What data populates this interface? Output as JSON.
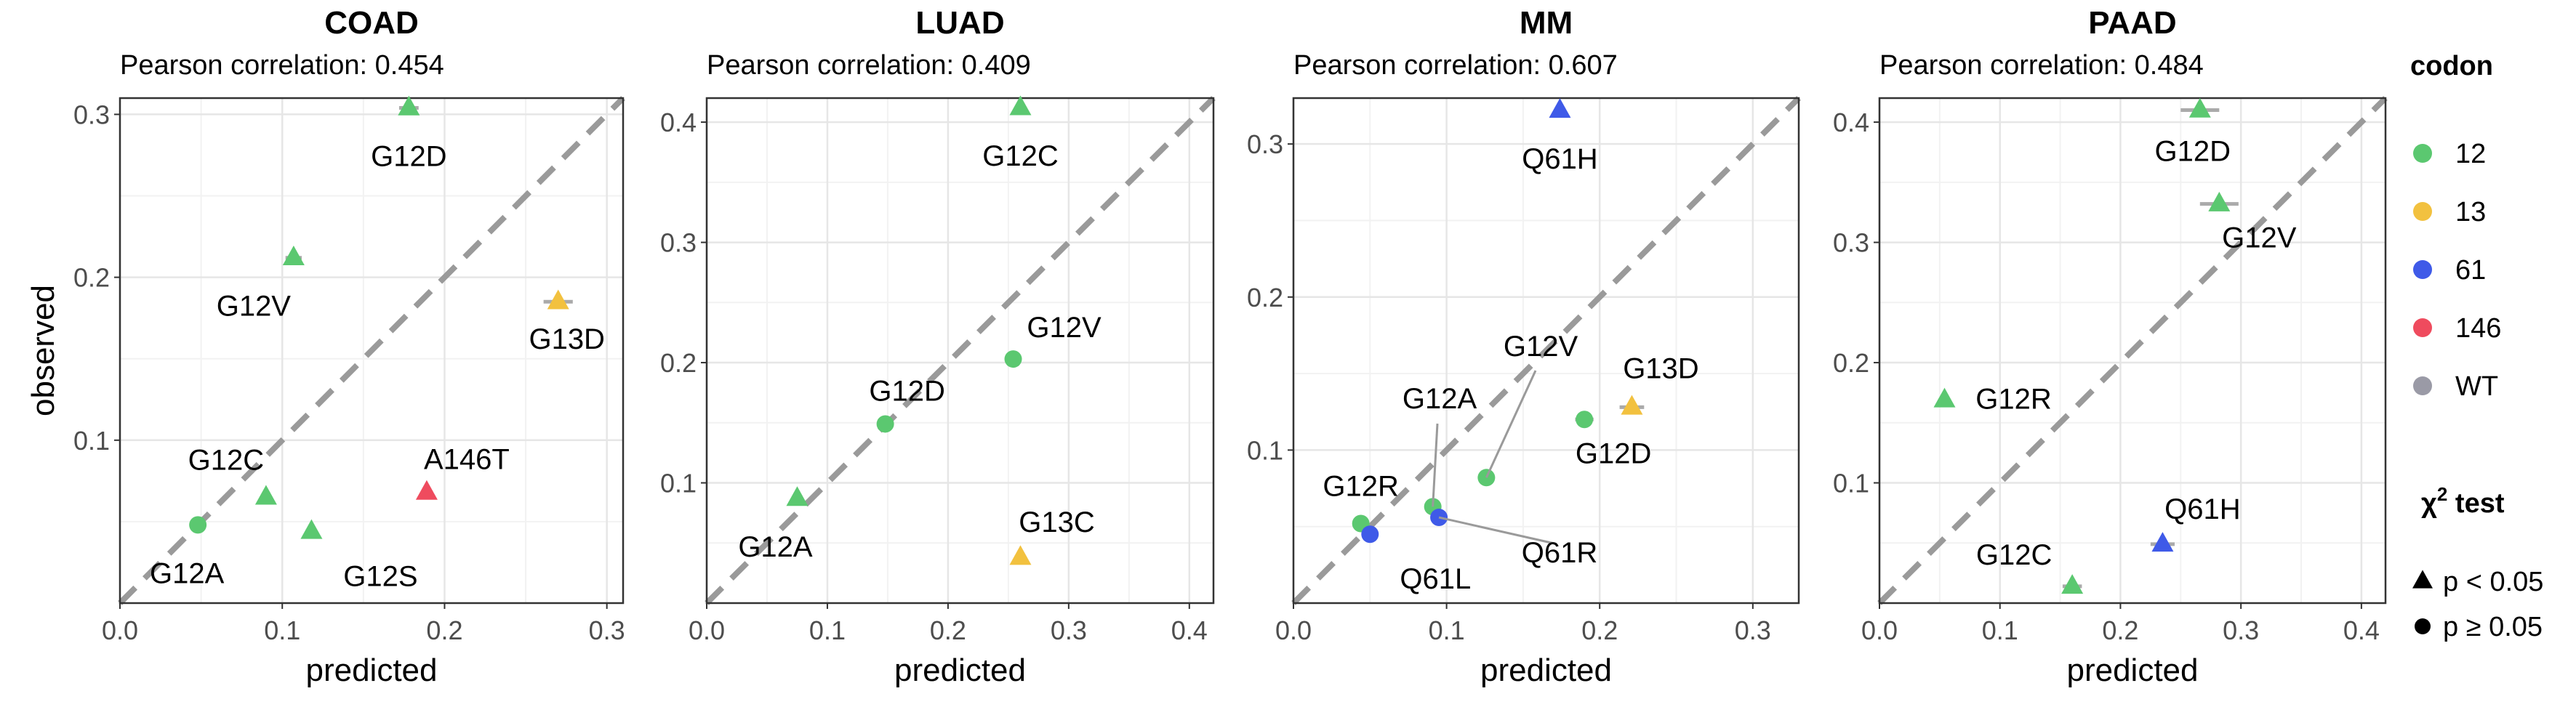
{
  "chart_data": [
    {
      "type": "scatter",
      "title": "COAD",
      "subtitle": "Pearson correlation: 0.454",
      "xlabel": "predicted",
      "ylabel": "observed",
      "xlim": [
        0,
        0.31
      ],
      "ylim": [
        0,
        0.31
      ],
      "xticks": [
        "0.0",
        "0.1",
        "0.2",
        "0.3"
      ],
      "yticks": [
        "0.1",
        "0.2",
        "0.3"
      ],
      "points": [
        {
          "label": "G12D",
          "x": 0.178,
          "y": 0.304,
          "codon": "12",
          "shape": "triangle",
          "err": 0.006
        },
        {
          "label": "G12V",
          "x": 0.107,
          "y": 0.212,
          "codon": "12",
          "shape": "triangle",
          "err": 0.005
        },
        {
          "label": "G13D",
          "x": 0.27,
          "y": 0.185,
          "codon": "13",
          "shape": "triangle",
          "err": 0.009
        },
        {
          "label": "A146T",
          "x": 0.189,
          "y": 0.068,
          "codon": "146",
          "shape": "triangle",
          "err": 0
        },
        {
          "label": "G12C",
          "x": 0.09,
          "y": 0.065,
          "codon": "12",
          "shape": "triangle",
          "err": 0
        },
        {
          "label": "G12S",
          "x": 0.118,
          "y": 0.044,
          "codon": "12",
          "shape": "triangle",
          "err": 0
        },
        {
          "label": "G12A",
          "x": 0.048,
          "y": 0.048,
          "codon": "12",
          "shape": "circle",
          "err": 0
        }
      ]
    },
    {
      "type": "scatter",
      "title": "LUAD",
      "subtitle": "Pearson correlation: 0.409",
      "xlabel": "predicted",
      "ylabel": "",
      "xlim": [
        0,
        0.42
      ],
      "ylim": [
        0,
        0.42
      ],
      "xticks": [
        "0.0",
        "0.1",
        "0.2",
        "0.3",
        "0.4"
      ],
      "yticks": [
        "0.1",
        "0.2",
        "0.3",
        "0.4"
      ],
      "points": [
        {
          "label": "G12C",
          "x": 0.26,
          "y": 0.412,
          "codon": "12",
          "shape": "triangle",
          "err": 0
        },
        {
          "label": "G12V",
          "x": 0.254,
          "y": 0.203,
          "codon": "12",
          "shape": "circle",
          "err": 0
        },
        {
          "label": "G12D",
          "x": 0.148,
          "y": 0.149,
          "codon": "12",
          "shape": "circle",
          "err": 0
        },
        {
          "label": "G12A",
          "x": 0.075,
          "y": 0.087,
          "codon": "12",
          "shape": "triangle",
          "err": 0
        },
        {
          "label": "G13C",
          "x": 0.26,
          "y": 0.038,
          "codon": "13",
          "shape": "triangle",
          "err": 0
        }
      ]
    },
    {
      "type": "scatter",
      "title": "MM",
      "subtitle": "Pearson correlation: 0.607",
      "xlabel": "predicted",
      "ylabel": "",
      "xlim": [
        0,
        0.33
      ],
      "ylim": [
        0,
        0.33
      ],
      "xticks": [
        "0.0",
        "0.1",
        "0.2",
        "0.3"
      ],
      "yticks": [
        "0.1",
        "0.2",
        "0.3"
      ],
      "points": [
        {
          "label": "Q61H",
          "x": 0.174,
          "y": 0.322,
          "codon": "61",
          "shape": "triangle",
          "err": 0
        },
        {
          "label": "G13D",
          "x": 0.221,
          "y": 0.128,
          "codon": "13",
          "shape": "triangle",
          "err": 0.008
        },
        {
          "label": "G12D",
          "x": 0.19,
          "y": 0.12,
          "codon": "12",
          "shape": "circle",
          "err": 0.006
        },
        {
          "label": "G12V",
          "x": 0.126,
          "y": 0.082,
          "codon": "12",
          "shape": "circle",
          "err": 0
        },
        {
          "label": "G12A",
          "x": 0.091,
          "y": 0.063,
          "codon": "12",
          "shape": "circle",
          "err": 0
        },
        {
          "label": "Q61R",
          "x": 0.095,
          "y": 0.056,
          "codon": "61",
          "shape": "circle",
          "err": 0
        },
        {
          "label": "G12R",
          "x": 0.044,
          "y": 0.052,
          "codon": "12",
          "shape": "circle",
          "err": 0
        },
        {
          "label": "Q61L",
          "x": 0.05,
          "y": 0.045,
          "codon": "61",
          "shape": "circle",
          "err": 0
        }
      ]
    },
    {
      "type": "scatter",
      "title": "PAAD",
      "subtitle": "Pearson correlation: 0.484",
      "xlabel": "predicted",
      "ylabel": "",
      "xlim": [
        0,
        0.42
      ],
      "ylim": [
        0,
        0.42
      ],
      "xticks": [
        "0.0",
        "0.1",
        "0.2",
        "0.3",
        "0.4"
      ],
      "yticks": [
        "0.1",
        "0.2",
        "0.3",
        "0.4"
      ],
      "points": [
        {
          "label": "G12D",
          "x": 0.266,
          "y": 0.41,
          "codon": "12",
          "shape": "triangle",
          "err": 0.016
        },
        {
          "label": "G12V",
          "x": 0.282,
          "y": 0.332,
          "codon": "12",
          "shape": "triangle",
          "err": 0.016
        },
        {
          "label": "G12R",
          "x": 0.054,
          "y": 0.169,
          "codon": "12",
          "shape": "triangle",
          "err": 0
        },
        {
          "label": "Q61H",
          "x": 0.235,
          "y": 0.049,
          "codon": "61",
          "shape": "triangle",
          "err": 0.01
        },
        {
          "label": "G12C",
          "x": 0.16,
          "y": 0.014,
          "codon": "12",
          "shape": "triangle",
          "err": 0.008
        }
      ]
    }
  ],
  "legend": {
    "codon_title": "codon",
    "codons": [
      {
        "label": "12",
        "color": "#5bc870"
      },
      {
        "label": "13",
        "color": "#f2c13f"
      },
      {
        "label": "61",
        "color": "#3f5ae8"
      },
      {
        "label": "146",
        "color": "#ef4b5e"
      },
      {
        "label": "WT",
        "color": "#9a9aa6"
      }
    ],
    "test_title_main": "χ",
    "test_title_sup": "2",
    "test_title_rest": " test",
    "tests": [
      {
        "label": "p < 0.05",
        "shape": "triangle"
      },
      {
        "label": "p ≥ 0.05",
        "shape": "circle"
      }
    ]
  }
}
